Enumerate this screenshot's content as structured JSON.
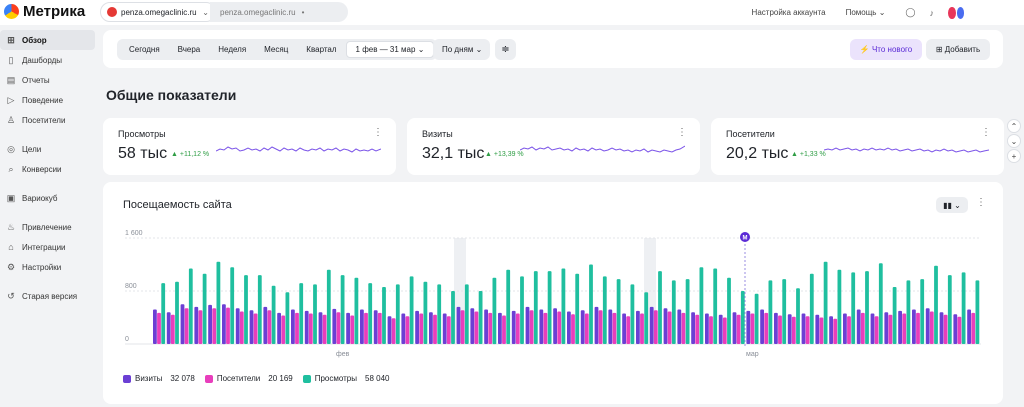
{
  "header": {
    "logo_text": "Метрика",
    "site_primary": "penza.omegaclinic.ru",
    "site_secondary": "penza.omegaclinic.ru",
    "account_settings": "Настройка аккаунта",
    "help": "Помощь"
  },
  "sidebar": {
    "items": [
      {
        "label": "Обзор",
        "icon": "grid-icon",
        "glyph": "⊞"
      },
      {
        "label": "Дашборды",
        "icon": "dashboards-icon",
        "glyph": "▯"
      },
      {
        "label": "Отчеты",
        "icon": "reports-icon",
        "glyph": "▤"
      },
      {
        "label": "Поведение",
        "icon": "play-icon",
        "glyph": "▷"
      },
      {
        "label": "Посетители",
        "icon": "person-icon",
        "glyph": "♙"
      },
      {
        "label": "Цели",
        "icon": "target-icon",
        "glyph": "◎"
      },
      {
        "label": "Конверсии",
        "icon": "search-icon",
        "glyph": "⌕"
      },
      {
        "label": "Вариокуб",
        "icon": "cube-icon",
        "glyph": "▣"
      },
      {
        "label": "Привлечение",
        "icon": "fire-icon",
        "glyph": "♨"
      },
      {
        "label": "Интеграции",
        "icon": "home-icon",
        "glyph": "⌂"
      },
      {
        "label": "Настройки",
        "icon": "gear-icon",
        "glyph": "⚙"
      },
      {
        "label": "Старая версия",
        "icon": "history-icon",
        "glyph": "↺"
      }
    ]
  },
  "filters": {
    "periods": [
      "Сегодня",
      "Вчера",
      "Неделя",
      "Месяц",
      "Квартал"
    ],
    "date_range": "1 фев — 31 мар",
    "grouping": "По дням",
    "whats_new": "Что нового",
    "add": "Добавить"
  },
  "overview_title": "Общие показатели",
  "cards": [
    {
      "title": "Просмотры",
      "value": "58 тыс",
      "delta": "+11,12 %"
    },
    {
      "title": "Визиты",
      "value": "32,1 тыс",
      "delta": "+13,39 %"
    },
    {
      "title": "Посетители",
      "value": "20,2 тыс",
      "delta": "+1,33 %"
    }
  ],
  "chart_title": "Посещаемость сайта",
  "chart_data": {
    "type": "bar",
    "x_tick_labels": [
      "фев",
      "мар"
    ],
    "y_ticks": [
      "0",
      "800",
      "1 600"
    ],
    "ylim": [
      0,
      1600
    ],
    "marker_label": "М",
    "series": [
      {
        "name": "Визиты",
        "color": "#6b3fd4",
        "values": [
          520,
          480,
          600,
          560,
          590,
          600,
          540,
          510,
          560,
          470,
          520,
          500,
          480,
          530,
          470,
          520,
          510,
          420,
          460,
          500,
          480,
          460,
          560,
          540,
          520,
          470,
          500,
          560,
          520,
          540,
          490,
          510,
          560,
          520,
          460,
          500,
          560,
          540,
          520,
          480,
          460,
          440,
          480,
          500,
          520,
          470,
          450,
          460,
          440,
          420,
          460,
          520,
          460,
          480,
          500,
          520,
          540,
          480,
          450,
          520
        ]
      },
      {
        "name": "Посетители",
        "color": "#e83ebc",
        "values": [
          470,
          440,
          540,
          510,
          540,
          550,
          490,
          460,
          510,
          430,
          470,
          460,
          440,
          480,
          430,
          470,
          470,
          390,
          420,
          460,
          440,
          420,
          510,
          490,
          470,
          430,
          460,
          510,
          470,
          490,
          450,
          460,
          510,
          470,
          420,
          460,
          510,
          490,
          470,
          440,
          420,
          400,
          440,
          460,
          470,
          430,
          410,
          420,
          400,
          380,
          420,
          470,
          420,
          440,
          460,
          470,
          490,
          440,
          410,
          470
        ]
      },
      {
        "name": "Просмотры",
        "color": "#1fbf9f",
        "values": [
          920,
          940,
          1140,
          1060,
          1240,
          1160,
          1040,
          1040,
          880,
          780,
          920,
          900,
          1120,
          1040,
          1000,
          920,
          860,
          900,
          1020,
          940,
          900,
          800,
          900,
          800,
          1000,
          1120,
          1020,
          1100,
          1100,
          1140,
          1060,
          1200,
          1020,
          980,
          900,
          780,
          1100,
          960,
          980,
          1160,
          1140,
          1000,
          800,
          760,
          960,
          980,
          840,
          1060,
          1240,
          1120,
          1080,
          1100,
          1220,
          860,
          960,
          980,
          1180,
          1040,
          1080,
          960
        ]
      }
    ],
    "totals": [
      "32 078",
      "20 169",
      "58 040"
    ]
  },
  "colors": {
    "accent": "#5b2bd6",
    "positive": "#2e9d44",
    "sparkline": "#7b54e8"
  }
}
